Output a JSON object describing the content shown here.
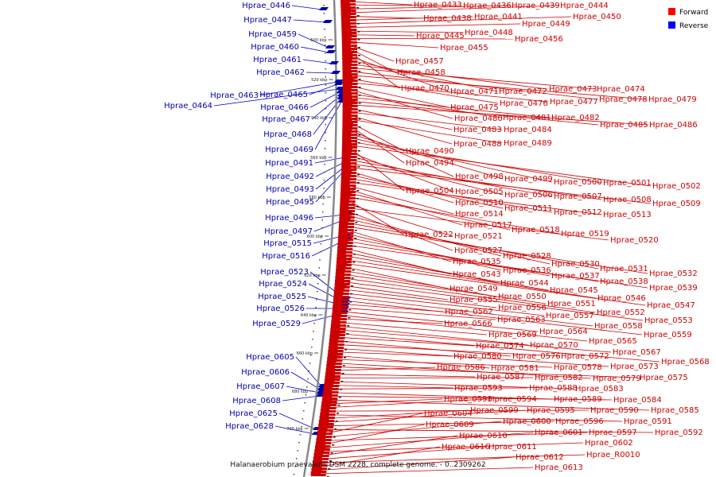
{
  "caption": "Halanaerobium praevalens DSM 2228, complete genome. - 0..2309262",
  "legend": [
    {
      "label": "Forward",
      "color": "#ff0000"
    },
    {
      "label": "Reverse",
      "color": "#0000ff"
    }
  ],
  "colors": {
    "forward": "#cc0000",
    "reverse": "#0000aa",
    "backbone": "#888888"
  },
  "tick_labels": [
    "500 kbp",
    "520 kbp",
    "540 kbp",
    "560 kbp",
    "580 kbp",
    "600 kbp",
    "620 kbp",
    "640 kbp",
    "660 kbp",
    "680 kbp",
    "700 kbp"
  ],
  "reverse_genes": [
    "Hprae_0446",
    "Hprae_0447",
    "Hprae_0459",
    "Hprae_0460",
    "Hprae_0461",
    "Hprae_0462",
    "Hprae_0463",
    "Hprae_0465",
    "Hprae_0464",
    "Hprae_0466",
    "Hprae_0467",
    "Hprae_0468",
    "Hprae_0469",
    "Hprae_0491",
    "Hprae_0492",
    "Hprae_0493",
    "Hprae_0495",
    "Hprae_0496",
    "Hprae_0497",
    "Hprae_0515",
    "Hprae_0516",
    "Hprae_0523",
    "Hprae_0524",
    "Hprae_0525",
    "Hprae_0526",
    "Hprae_0529",
    "Hprae_0605",
    "Hprae_0606",
    "Hprae_0607",
    "Hprae_0608",
    "Hprae_0625",
    "Hprae_0628"
  ],
  "forward_genes": [
    "Hprae_0433",
    "Hprae_0436",
    "Hprae_0439",
    "Hprae_0444",
    "Hprae_0438",
    "Hprae_0441",
    "Hprae_0450",
    "Hprae_0449",
    "Hprae_0448",
    "Hprae_0445",
    "Hprae_0456",
    "Hprae_0455",
    "Hprae_0457",
    "Hprae_0458",
    "Hprae_0470",
    "Hprae_0471",
    "Hprae_0472",
    "Hprae_0473",
    "Hprae_0474",
    "Hprae_0478",
    "Hprae_0479",
    "Hprae_0476",
    "Hprae_0477",
    "Hprae_0475",
    "Hprae_0480",
    "Hprae_0481",
    "Hprae_0482",
    "Hprae_0485",
    "Hprae_0486",
    "Hprae_0483",
    "Hprae_0484",
    "Hprae_0488",
    "Hprae_0489",
    "Hprae_0490",
    "Hprae_0494",
    "Hprae_0498",
    "Hprae_0499",
    "Hprae_0500",
    "Hprae_0501",
    "Hprae_0502",
    "Hprae_0504",
    "Hprae_0505",
    "Hprae_0506",
    "Hprae_0507",
    "Hprae_0508",
    "Hprae_0509",
    "Hprae_0510",
    "Hprae_0511",
    "Hprae_0512",
    "Hprae_0513",
    "Hprae_0514",
    "Hprae_0517",
    "Hprae_0518",
    "Hprae_0519",
    "Hprae_0522",
    "Hprae_0521",
    "Hprae_0520",
    "Hprae_0527",
    "Hprae_0528",
    "Hprae_0530",
    "Hprae_0531",
    "Hprae_0532",
    "Hprae_0535",
    "Hprae_0536",
    "Hprae_0537",
    "Hprae_0538",
    "Hprae_0539",
    "Hprae_0543",
    "Hprae_0544",
    "Hprae_0545",
    "Hprae_0546",
    "Hprae_0547",
    "Hprae_0549",
    "Hprae_0550",
    "Hprae_0551",
    "Hprae_0552",
    "Hprae_0553",
    "Hprae_0555",
    "Hprae_0556",
    "Hprae_0557",
    "Hprae_0558",
    "Hprae_0559",
    "Hprae_0562",
    "Hprae_0563",
    "Hprae_0564",
    "Hprae_0565",
    "Hprae_0566",
    "Hprae_0569",
    "Hprae_0570",
    "Hprae_0567",
    "Hprae_0568",
    "Hprae_0574",
    "Hprae_0576",
    "Hprae_0572",
    "Hprae_0573",
    "Hprae_0580",
    "Hprae_0581",
    "Hprae_0578",
    "Hprae_0579",
    "Hprae_0575",
    "Hprae_0586",
    "Hprae_0587",
    "Hprae_0582",
    "Hprae_0583",
    "Hprae_0593",
    "Hprae_0588",
    "Hprae_0589",
    "Hprae_0584",
    "Hprae_0585",
    "Hprae_0598",
    "Hprae_0594",
    "Hprae_0590",
    "Hprae_0591",
    "Hprae_0599",
    "Hprae_0595",
    "Hprae_0596",
    "Hprae_0592",
    "Hprae_0604",
    "Hprae_0600",
    "Hprae_0597",
    "Hprae_0609",
    "Hprae_0601",
    "Hprae_0602",
    "Hprae_0610",
    "Hprae_0611",
    "Hprae_R0010",
    "Hprae_0616",
    "Hprae_0612",
    "Hprae_0613"
  ]
}
